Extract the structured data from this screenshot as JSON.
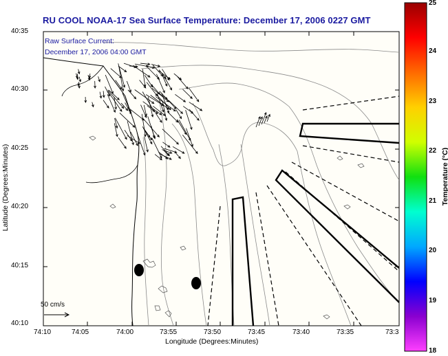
{
  "title": "RU COOL  NOAA-17  Sea Surface Temperature:  December 17, 2006 0227 GMT",
  "overlay": {
    "line1": "Raw Surface Current:",
    "line2": "December 17, 2006 04:00 GMT"
  },
  "axes": {
    "xlabel": "Longitude (Degrees:Minutes)",
    "ylabel": "Latitude (Degrees:Minutes)",
    "xticks": [
      "74:10",
      "74:05",
      "74:00",
      "73:55",
      "73:50",
      "73:45",
      "73:40",
      "73:35",
      "73:3"
    ],
    "yticks": [
      "40:35",
      "40:30",
      "40:25",
      "40:20",
      "40:15",
      "40:10"
    ]
  },
  "scale_vector": {
    "label": "50 cm/s"
  },
  "colorbar": {
    "title": "Temperature (°C)",
    "ticks": [
      "25",
      "24",
      "23",
      "22",
      "21",
      "20",
      "19",
      "18"
    ],
    "range": [
      18,
      25
    ],
    "colors": [
      "#ff3fff",
      "#8a00d0",
      "#0000ff",
      "#00a8ff",
      "#00ffd0",
      "#10e010",
      "#d0ff00",
      "#ffd000",
      "#ff6a00",
      "#ff0000",
      "#990000"
    ]
  }
}
